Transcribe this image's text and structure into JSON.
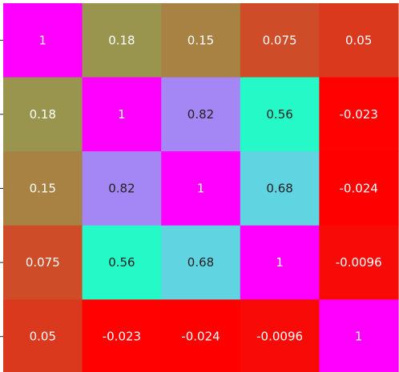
{
  "chart_data": {
    "type": "heatmap",
    "title": "",
    "xlabel": "",
    "ylabel": "",
    "x_categories": [
      "",
      "",
      "",
      "",
      ""
    ],
    "y_categories": [
      "",
      "",
      "",
      "",
      ""
    ],
    "values": [
      [
        1,
        0.18,
        0.15,
        0.075,
        0.05
      ],
      [
        0.18,
        1,
        0.82,
        0.56,
        -0.023
      ],
      [
        0.15,
        0.82,
        1,
        0.68,
        -0.024
      ],
      [
        0.075,
        0.56,
        0.68,
        1,
        -0.0096
      ],
      [
        0.05,
        -0.023,
        -0.024,
        -0.0096,
        1
      ]
    ],
    "labels": [
      [
        "1",
        "0.18",
        "0.15",
        "0.075",
        "0.05"
      ],
      [
        "0.18",
        "1",
        "0.82",
        "0.56",
        "-0.023"
      ],
      [
        "0.15",
        "0.82",
        "1",
        "0.68",
        "-0.024"
      ],
      [
        "0.075",
        "0.56",
        "0.68",
        "1",
        "-0.0096"
      ],
      [
        "0.05",
        "-0.023",
        "-0.024",
        "-0.0096",
        "1"
      ]
    ],
    "colormap": "rainbow_r",
    "value_range": [
      -0.024,
      1
    ],
    "legend": "none",
    "grid": false
  },
  "colors": {
    "background": "#ffffff",
    "axis": "#222222",
    "text_light": "#ffffff",
    "text_dark": "#222222"
  }
}
